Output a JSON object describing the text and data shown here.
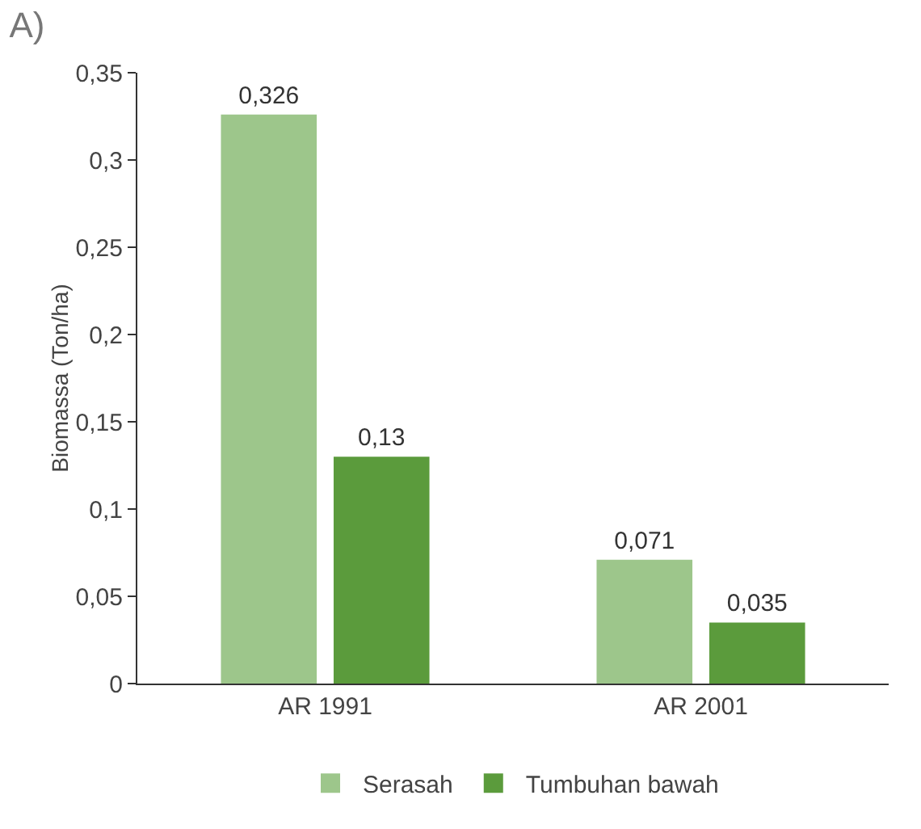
{
  "chart_data": {
    "type": "bar",
    "title": "A)",
    "ylabel": "Biomassa (Ton/ha)",
    "categories": [
      "AR 1991",
      "AR 2001"
    ],
    "series": [
      {
        "name": "Serasah",
        "color": "#9dc68b",
        "values": [
          0.326,
          0.071
        ],
        "value_labels": [
          "0,326",
          "0,071"
        ]
      },
      {
        "name": "Tumbuhan bawah",
        "color": "#5b9b3c",
        "values": [
          0.13,
          0.035
        ],
        "value_labels": [
          "0,13",
          "0,035"
        ]
      }
    ],
    "ylim": [
      0,
      0.35
    ],
    "yticks": [
      {
        "value": 0,
        "label": "0"
      },
      {
        "value": 0.05,
        "label": "0,05"
      },
      {
        "value": 0.1,
        "label": "0,1"
      },
      {
        "value": 0.15,
        "label": "0,15"
      },
      {
        "value": 0.2,
        "label": "0,2"
      },
      {
        "value": 0.25,
        "label": "0,25"
      },
      {
        "value": 0.3,
        "label": "0,3"
      },
      {
        "value": 0.35,
        "label": "0,35"
      }
    ],
    "grid": false,
    "legend": "bottom"
  }
}
